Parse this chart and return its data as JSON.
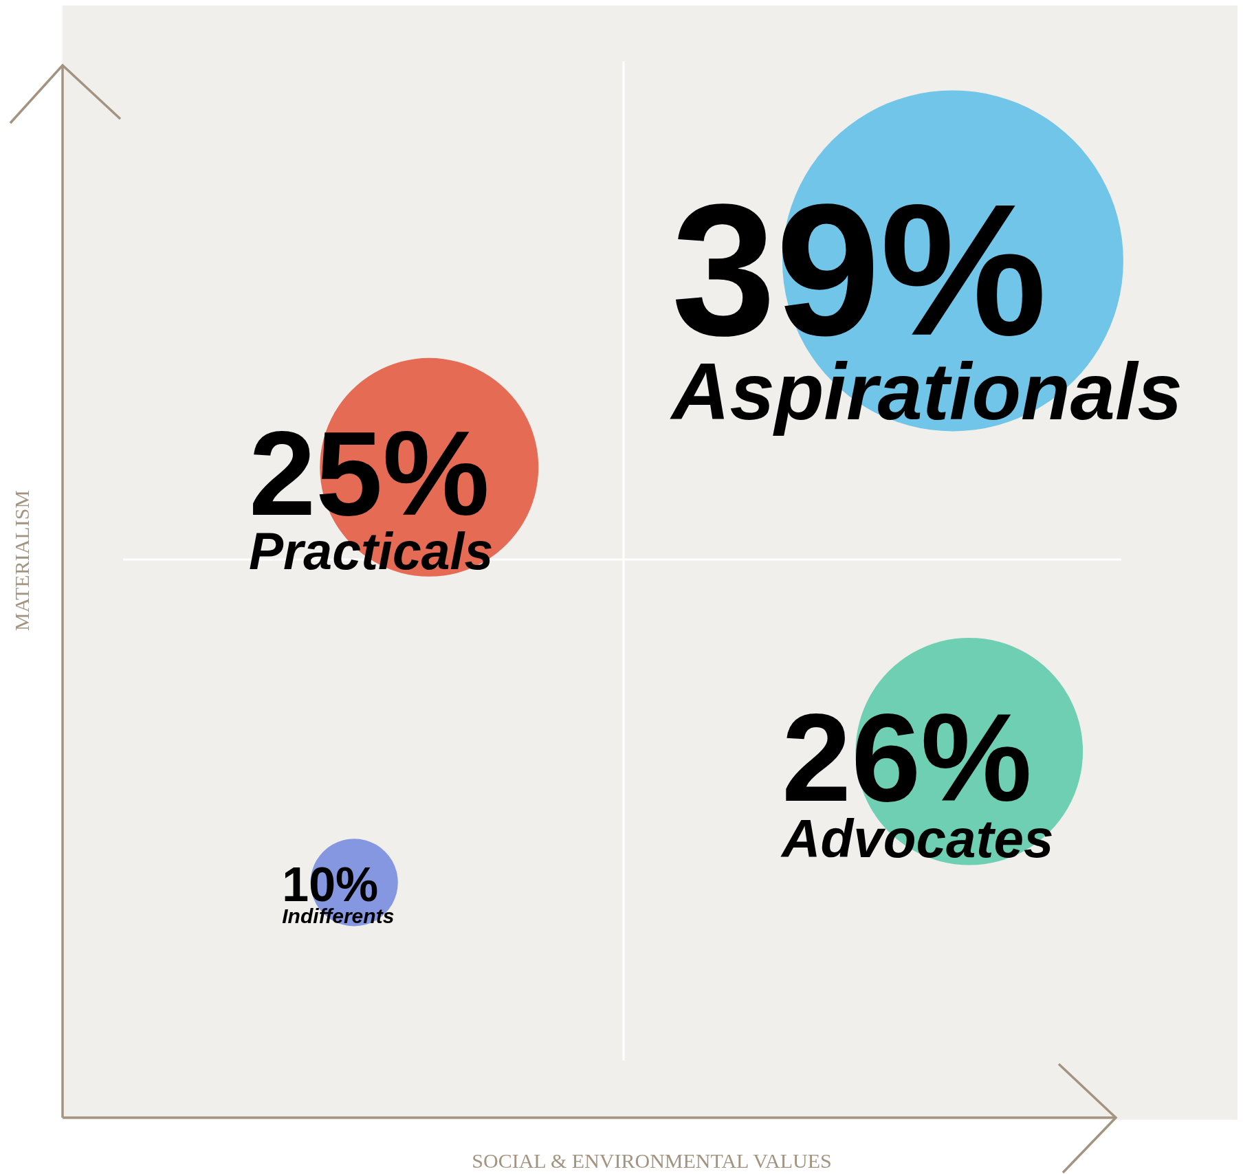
{
  "chart_data": {
    "type": "other",
    "xlabel": "SOCIAL & ENVIRONMENTAL VALUES",
    "ylabel": "MATERIALISM",
    "categories": [
      "Aspirationals",
      "Practicals",
      "Advocates",
      "Indifferents"
    ],
    "values": [
      39,
      25,
      26,
      10
    ],
    "value_labels": [
      "39%",
      "25%",
      "26%",
      "10%"
    ],
    "colors": [
      "#71c5e8",
      "#e56b55",
      "#6fcfb3",
      "#8497e0"
    ]
  }
}
